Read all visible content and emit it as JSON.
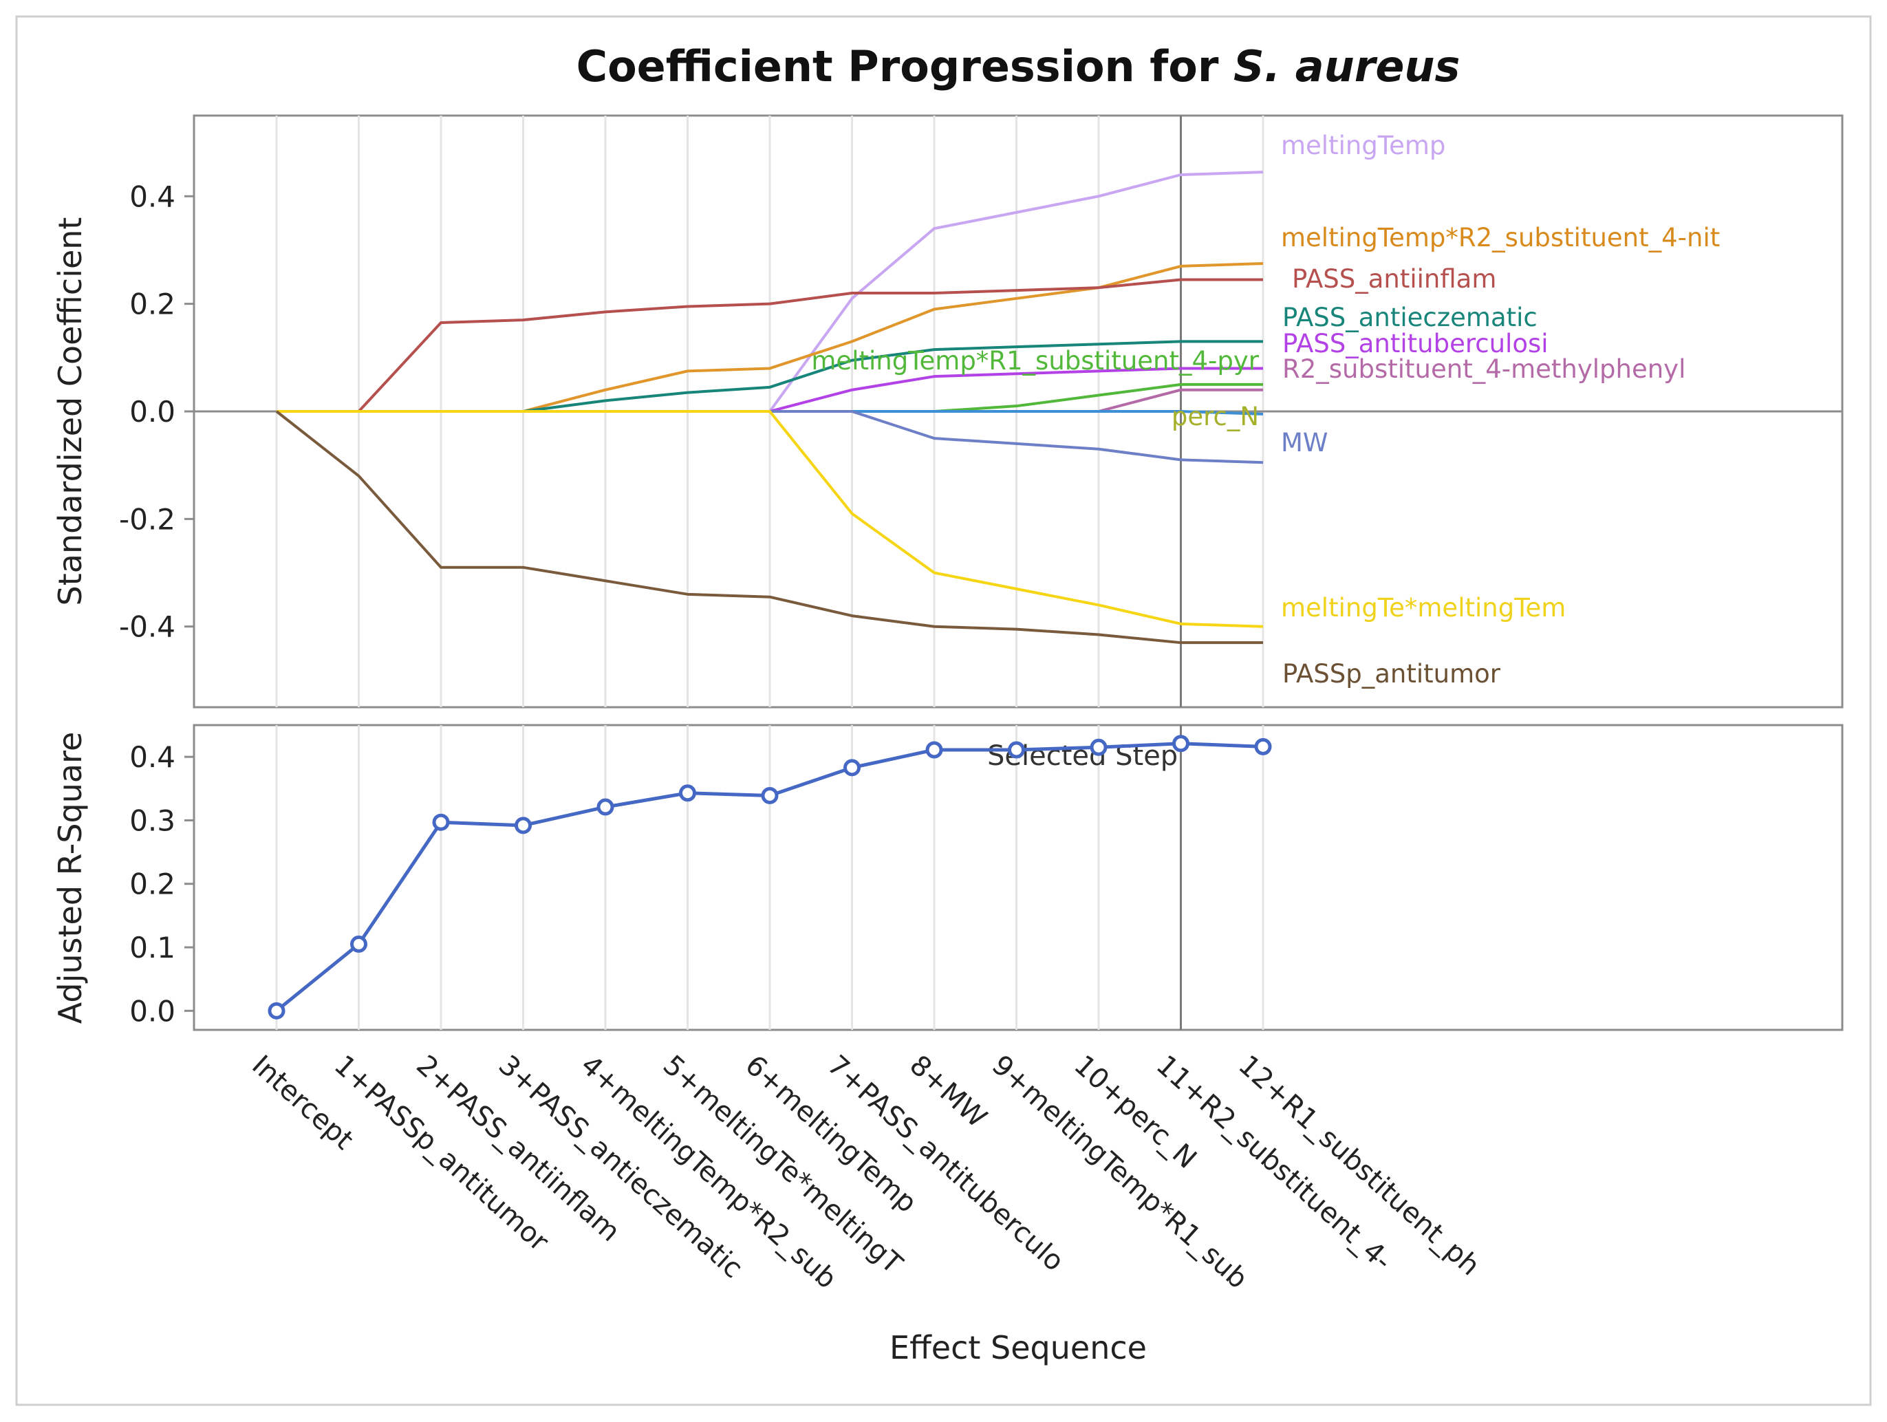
{
  "chart_data": [
    {
      "type": "line",
      "title_prefix": "Coefficient Progression for ",
      "title_italic": "S. aureus",
      "ylabel": "Standardized Coefficient",
      "xlabel": "",
      "ylim": [
        -0.55,
        0.55
      ],
      "yticks": [
        -0.4,
        -0.2,
        0.0,
        0.2,
        0.4
      ],
      "ytick_labels": [
        "-0.4",
        "-0.2",
        "0.0",
        "0.2",
        "0.4"
      ],
      "selected_step_index": 11,
      "series": [
        {
          "name": "meltingTemp",
          "color": "#c8a6f2",
          "values": [
            0,
            0,
            0,
            0,
            0,
            0,
            0,
            0.21,
            0.34,
            0.37,
            0.4,
            0.44,
            0.445
          ]
        },
        {
          "name": "meltingTemp*R2_substituent_4-nit",
          "color": "#e0962a",
          "values": [
            0,
            0,
            0,
            0,
            0.04,
            0.075,
            0.08,
            0.13,
            0.19,
            0.21,
            0.23,
            0.27,
            0.275
          ]
        },
        {
          "name": "PASS_antiinflam",
          "color": "#b5504f",
          "values": [
            0,
            0,
            0.165,
            0.17,
            0.185,
            0.195,
            0.2,
            0.22,
            0.22,
            0.225,
            0.23,
            0.245,
            0.245
          ]
        },
        {
          "name": "PASS_antieczematic",
          "color": "#17857a",
          "values": [
            0,
            0,
            0,
            0,
            0.02,
            0.035,
            0.045,
            0.095,
            0.115,
            0.12,
            0.125,
            0.13,
            0.13
          ]
        },
        {
          "name": "PASS_antituberculosi",
          "color": "#b342e6",
          "values": [
            0,
            0,
            0,
            0,
            0,
            0,
            0,
            0.04,
            0.065,
            0.07,
            0.075,
            0.08,
            0.08
          ]
        },
        {
          "name": "R2_substituent_4-methylphenyl",
          "color": "#b56aa8",
          "values": [
            0,
            0,
            0,
            0,
            0,
            0,
            0,
            0,
            0,
            0,
            0,
            0.04,
            0.04
          ]
        },
        {
          "name": "meltingTemp*R1_substituent_4-pyr",
          "color": "#52b83a",
          "values": [
            0,
            0,
            0,
            0,
            0,
            0,
            0,
            0,
            0,
            0.01,
            0.03,
            0.05,
            0.05
          ]
        },
        {
          "name": "perc_N",
          "color": "#3d8fd6",
          "values": [
            0,
            0,
            0,
            0,
            0,
            0,
            0,
            0,
            0,
            0,
            0,
            0,
            -0.005
          ]
        },
        {
          "name": "MW",
          "color": "#6c7fc7",
          "values": [
            0,
            0,
            0,
            0,
            0,
            0,
            0,
            0,
            -0.05,
            -0.06,
            -0.07,
            -0.09,
            -0.095
          ]
        },
        {
          "name": "meltingTe*meltingTem",
          "color": "#f5d514",
          "values": [
            0,
            0,
            0,
            0,
            0,
            0,
            0,
            -0.19,
            -0.3,
            -0.33,
            -0.36,
            -0.395,
            -0.4
          ]
        },
        {
          "name": "PASSp_antitumor",
          "color": "#7a5a3c",
          "values": [
            0,
            -0.12,
            -0.29,
            -0.29,
            -0.315,
            -0.34,
            -0.345,
            -0.38,
            -0.4,
            -0.405,
            -0.415,
            -0.43,
            -0.43
          ]
        }
      ],
      "series_labels": [
        {
          "text": "meltingTemp",
          "color": "#c8a6f2"
        },
        {
          "text": "meltingTemp*R2_substituent_4-nit",
          "color": "#d98a1c"
        },
        {
          "text": "PASS_antiinflam",
          "color": "#b5504f"
        },
        {
          "text": "PASS_antieczematic",
          "color": "#17857a"
        },
        {
          "text": "PASS_antituberculosi",
          "color": "#b342e6"
        },
        {
          "text": "R2_substituent_4-methylphenyl",
          "color": "#b56aa8"
        },
        {
          "text": "meltingTemp*R1_substituent_4-pyr",
          "color": "#52b83a"
        },
        {
          "text": "perc_N",
          "color": "#a7b02a"
        },
        {
          "text": "MW",
          "color": "#6c7fc7"
        },
        {
          "text": "meltingTe*meltingTem",
          "color": "#f0d21a"
        },
        {
          "text": "PASSp_antitumor",
          "color": "#6b5034"
        }
      ]
    },
    {
      "type": "line",
      "ylabel": "Adjusted R-Square",
      "xlabel": "Effect Sequence",
      "ylim": [
        -0.03,
        0.45
      ],
      "yticks": [
        0.0,
        0.1,
        0.2,
        0.3,
        0.4
      ],
      "ytick_labels": [
        "0.0",
        "0.1",
        "0.2",
        "0.3",
        "0.4"
      ],
      "annotation": "Selected Step",
      "color": "#4468c4",
      "categories": [
        "Intercept",
        "1+PASSp_antitumor",
        "2+PASS_antiinflam",
        "3+PASS_antieczematic",
        "4+meltingTemp*R2_sub",
        "5+meltingTe*meltingT",
        "6+meltingTemp",
        "7+PASS_antituberculo",
        "8+MW",
        "9+meltingTemp*R1_sub",
        "10+perc_N",
        "11+R2_substituent_4-",
        "12+R1_substituent_ph"
      ],
      "values": [
        0.0,
        0.105,
        0.297,
        0.292,
        0.321,
        0.343,
        0.339,
        0.383,
        0.411,
        0.411,
        0.415,
        0.421,
        0.416
      ]
    }
  ]
}
